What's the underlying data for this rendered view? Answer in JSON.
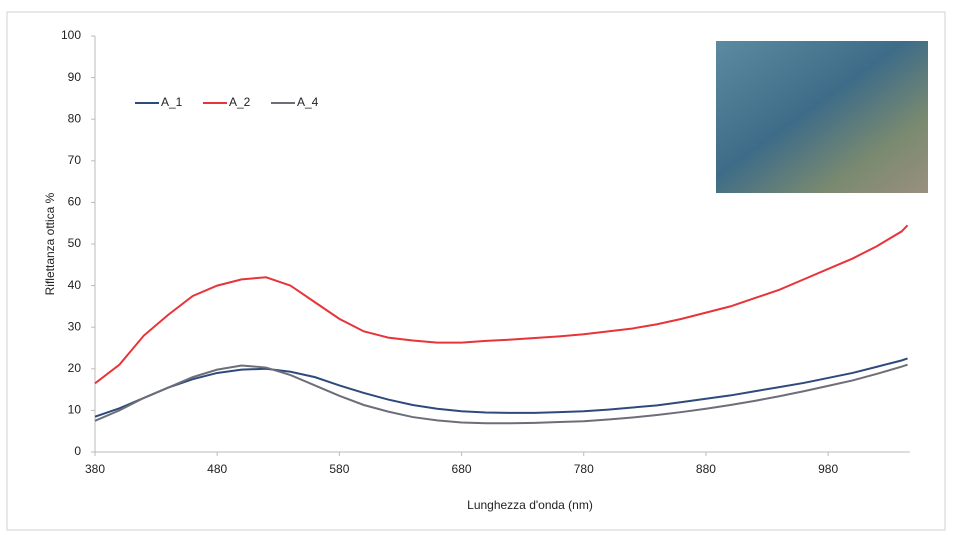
{
  "chart_data": {
    "type": "line",
    "x_label": "Lunghezza d'onda (nm)",
    "y_label": "Riflettanza  ottica %",
    "x": [
      380,
      400,
      420,
      440,
      460,
      480,
      500,
      520,
      540,
      560,
      580,
      600,
      620,
      640,
      660,
      680,
      700,
      720,
      740,
      760,
      780,
      800,
      820,
      840,
      860,
      880,
      900,
      920,
      940,
      960,
      980,
      1000,
      1020,
      1040,
      1045
    ],
    "series": [
      {
        "name": "A_1",
        "color": "#2e4a7d",
        "values": [
          8.5,
          10.5,
          13,
          15.5,
          17.5,
          19,
          19.8,
          20,
          19.3,
          18,
          16,
          14.2,
          12.6,
          11.3,
          10.4,
          9.8,
          9.5,
          9.4,
          9.4,
          9.6,
          9.8,
          10.2,
          10.7,
          11.2,
          12,
          12.8,
          13.6,
          14.6,
          15.6,
          16.6,
          17.8,
          19,
          20.5,
          22,
          22.5
        ]
      },
      {
        "name": "A_2",
        "color": "#e8333a",
        "values": [
          16.5,
          21,
          28,
          33,
          37.5,
          40,
          41.5,
          42,
          40,
          36,
          32,
          29,
          27.5,
          26.8,
          26.3,
          26.3,
          26.7,
          27,
          27.4,
          27.8,
          28.3,
          29,
          29.7,
          30.7,
          32,
          33.5,
          35,
          37,
          39,
          41.5,
          44,
          46.5,
          49.5,
          53,
          54.5
        ]
      },
      {
        "name": "A_4",
        "color": "#6e6e7a",
        "values": [
          7.5,
          10,
          13,
          15.5,
          18,
          19.8,
          20.8,
          20.3,
          18.5,
          16,
          13.5,
          11.3,
          9.7,
          8.4,
          7.6,
          7.1,
          6.9,
          6.9,
          7,
          7.2,
          7.4,
          7.8,
          8.3,
          8.9,
          9.6,
          10.4,
          11.3,
          12.3,
          13.4,
          14.6,
          15.9,
          17.2,
          18.8,
          20.5,
          21
        ]
      }
    ],
    "xlim": [
      380,
      1047
    ],
    "ylim": [
      0,
      100
    ],
    "xticks": [
      380,
      480,
      580,
      680,
      780,
      880,
      980
    ],
    "yticks": [
      0,
      10,
      20,
      30,
      40,
      50,
      60,
      70,
      80,
      90,
      100
    ],
    "legend": "top-left"
  }
}
